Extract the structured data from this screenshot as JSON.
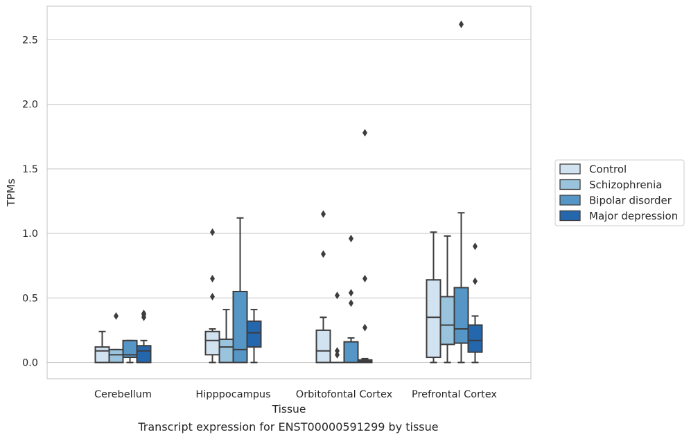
{
  "chart_data": {
    "type": "box",
    "title": "",
    "caption": "Transcript expression for ENST00000591299 by tissue",
    "xlabel": "Tissue",
    "ylabel": "TPMs",
    "ylim": [
      -0.13,
      2.76
    ],
    "yticks": [
      0.0,
      0.5,
      1.0,
      1.5,
      2.0,
      2.5
    ],
    "ytick_labels": [
      "0.0",
      "0.5",
      "1.0",
      "1.5",
      "2.0",
      "2.5"
    ],
    "grid": "horizontal",
    "legend_placement": "right-outside",
    "categories": [
      "Cerebellum",
      "Hipppocampus",
      "Orbitofontal Cortex",
      "Prefrontal Cortex"
    ],
    "series": [
      {
        "name": "Control",
        "color": "#d1e2f1",
        "boxes": [
          {
            "whisker_low": 0.0,
            "q1": 0.0,
            "median": 0.09,
            "q3": 0.12,
            "whisker_high": 0.24,
            "outliers": []
          },
          {
            "whisker_low": 0.0,
            "q1": 0.06,
            "median": 0.17,
            "q3": 0.24,
            "whisker_high": 0.26,
            "outliers": [
              0.51,
              0.65,
              1.01
            ]
          },
          {
            "whisker_low": 0.0,
            "q1": 0.0,
            "median": 0.09,
            "q3": 0.25,
            "whisker_high": 0.35,
            "outliers": [
              0.84,
              1.15
            ]
          },
          {
            "whisker_low": 0.0,
            "q1": 0.04,
            "median": 0.35,
            "q3": 0.64,
            "whisker_high": 1.01,
            "outliers": []
          }
        ]
      },
      {
        "name": "Schizophrenia",
        "color": "#9ac3de",
        "boxes": [
          {
            "whisker_low": 0.0,
            "q1": 0.0,
            "median": 0.06,
            "q3": 0.1,
            "whisker_high": 0.1,
            "outliers": [
              0.36
            ]
          },
          {
            "whisker_low": 0.0,
            "q1": 0.0,
            "median": 0.12,
            "q3": 0.18,
            "whisker_high": 0.41,
            "outliers": []
          },
          {
            "whisker_low": 0.0,
            "q1": 0.0,
            "median": 0.0,
            "q3": 0.0,
            "whisker_high": 0.0,
            "outliers": [
              0.06,
              0.09,
              0.52
            ]
          },
          {
            "whisker_low": 0.0,
            "q1": 0.14,
            "median": 0.29,
            "q3": 0.51,
            "whisker_high": 0.98,
            "outliers": []
          }
        ]
      },
      {
        "name": "Bipolar disorder",
        "color": "#5696c6",
        "boxes": [
          {
            "whisker_low": 0.0,
            "q1": 0.04,
            "median": 0.06,
            "q3": 0.17,
            "whisker_high": 0.17,
            "outliers": []
          },
          {
            "whisker_low": 0.0,
            "q1": 0.0,
            "median": 0.1,
            "q3": 0.55,
            "whisker_high": 1.12,
            "outliers": []
          },
          {
            "whisker_low": 0.0,
            "q1": 0.0,
            "median": 0.0,
            "q3": 0.16,
            "whisker_high": 0.19,
            "outliers": [
              0.46,
              0.54,
              0.96
            ]
          },
          {
            "whisker_low": 0.0,
            "q1": 0.15,
            "median": 0.26,
            "q3": 0.58,
            "whisker_high": 1.16,
            "outliers": [
              2.62
            ]
          }
        ]
      },
      {
        "name": "Major depression",
        "color": "#2567ad",
        "boxes": [
          {
            "whisker_low": 0.0,
            "q1": 0.0,
            "median": 0.09,
            "q3": 0.13,
            "whisker_high": 0.17,
            "outliers": [
              0.35,
              0.37,
              0.38
            ]
          },
          {
            "whisker_low": 0.0,
            "q1": 0.12,
            "median": 0.23,
            "q3": 0.32,
            "whisker_high": 0.41,
            "outliers": []
          },
          {
            "whisker_low": 0.0,
            "q1": 0.0,
            "median": 0.01,
            "q3": 0.02,
            "whisker_high": 0.03,
            "outliers": [
              0.27,
              0.65,
              1.78
            ]
          },
          {
            "whisker_low": 0.0,
            "q1": 0.08,
            "median": 0.17,
            "q3": 0.29,
            "whisker_high": 0.36,
            "outliers": [
              0.63,
              0.9
            ]
          }
        ]
      }
    ]
  }
}
